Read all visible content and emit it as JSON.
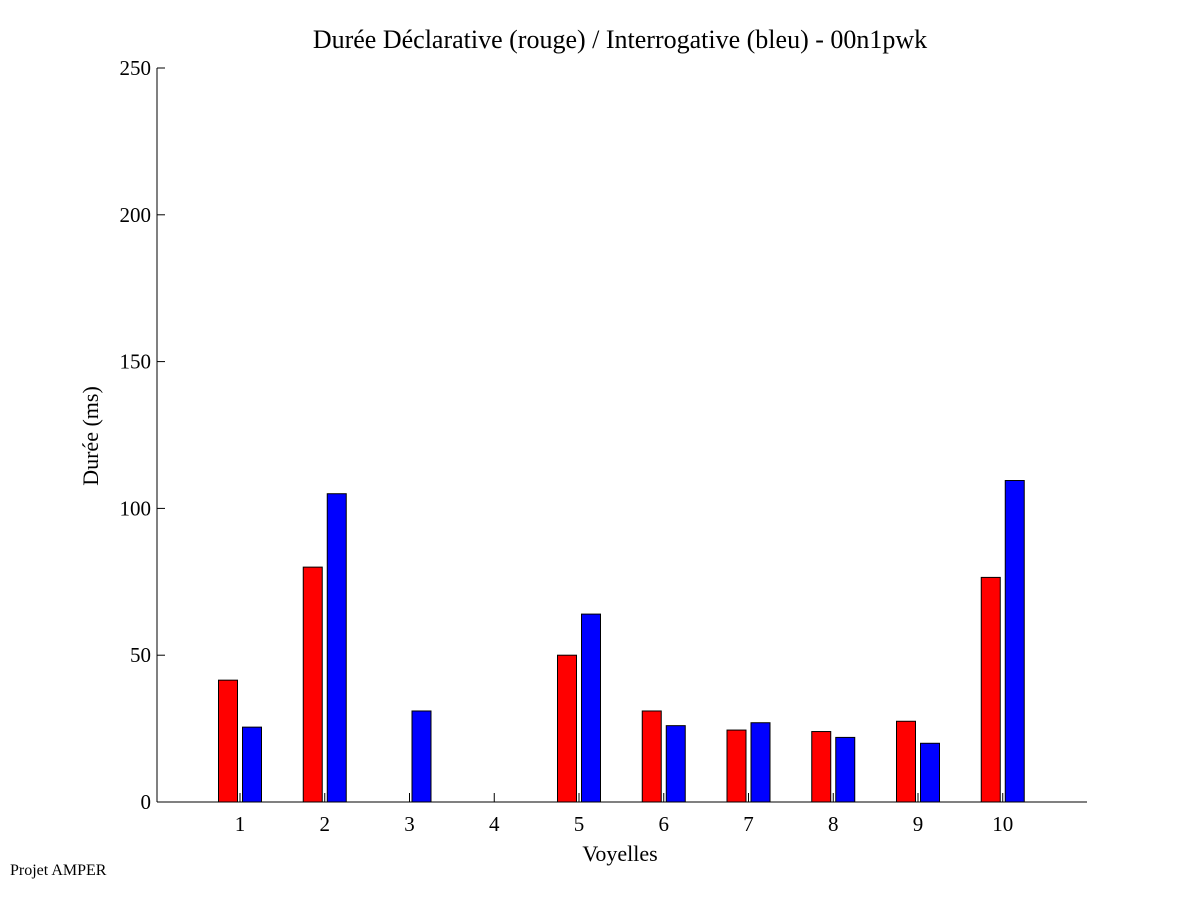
{
  "chart_data": {
    "type": "bar",
    "title": "Durée Déclarative (rouge) / Interrogative (bleu) - 00n1pwk",
    "xlabel": "Voyelles",
    "ylabel": "Durée (ms)",
    "categories": [
      "1",
      "2",
      "3",
      "4",
      "5",
      "6",
      "7",
      "8",
      "9",
      "10"
    ],
    "series": [
      {
        "color": "#ff0000",
        "values": [
          41.5,
          80,
          0,
          0,
          50,
          31,
          24.5,
          24,
          27.5,
          76.5
        ]
      },
      {
        "color": "#0000ff",
        "values": [
          25.5,
          105,
          31,
          0,
          64,
          26,
          27,
          22,
          20,
          109.5
        ]
      }
    ],
    "ylim": [
      0,
      250
    ],
    "yticks": [
      "0",
      "50",
      "100",
      "150",
      "200",
      "250"
    ],
    "grid": false,
    "legend": "none"
  },
  "footer": {
    "credit": "Projet AMPER"
  }
}
